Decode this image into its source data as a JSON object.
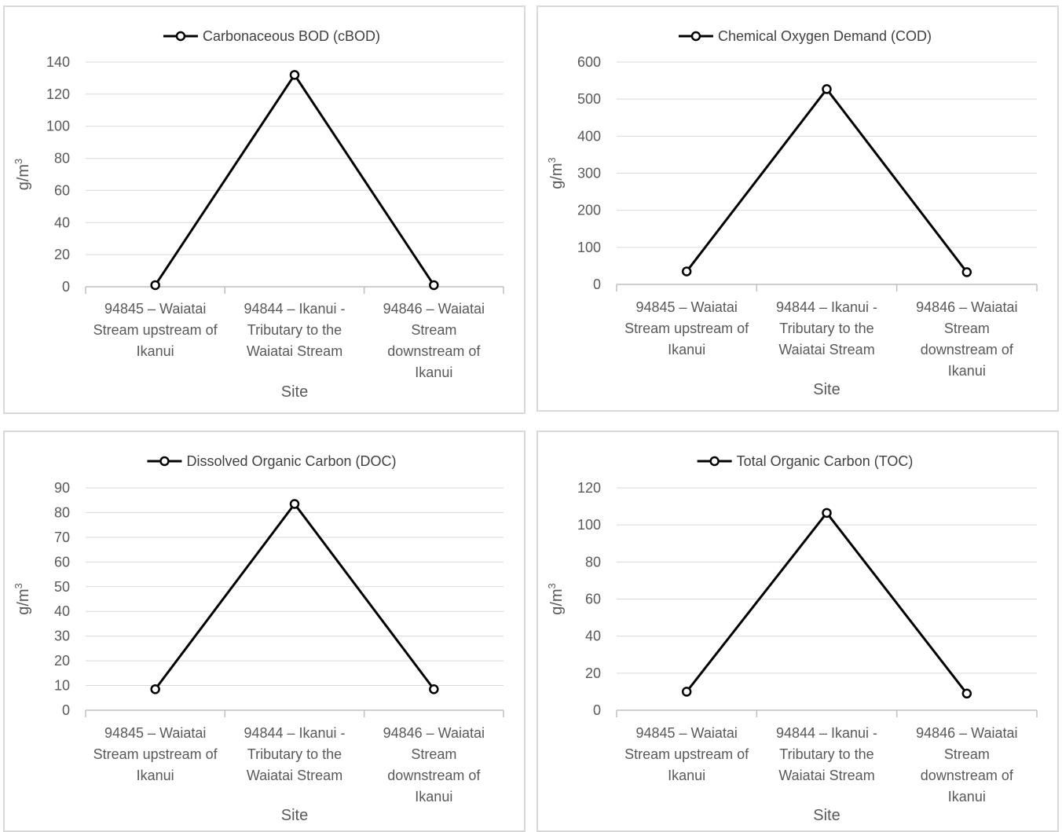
{
  "chart_data": [
    {
      "type": "line",
      "categories": [
        [
          "94845 – Waiatai",
          "Stream upstream of",
          "Ikanui"
        ],
        [
          "94844 – Ikanui -",
          "Tributary to the",
          "Waiatai Stream"
        ],
        [
          "94846 – Waiatai",
          "Stream",
          "downstream of",
          "Ikanui"
        ]
      ],
      "series": [
        {
          "name": "Carbonaceous BOD (cBOD)",
          "values": [
            1,
            132,
            1
          ]
        }
      ],
      "xlabel": "Site",
      "ylabel": "g/m",
      "ylabel_sup": "3",
      "ylim": [
        0,
        140
      ],
      "yticks": [
        0,
        20,
        40,
        60,
        80,
        100,
        120,
        140
      ],
      "grid": true,
      "legend": "top",
      "colors": {
        "line": "#000000",
        "grid": "#d9d9d9",
        "axis": "#bfbfbf"
      }
    },
    {
      "type": "line",
      "categories": [
        [
          "94845 – Waiatai",
          "Stream upstream of",
          "Ikanui"
        ],
        [
          "94844 – Ikanui -",
          "Tributary to the",
          "Waiatai Stream"
        ],
        [
          "94846 – Waiatai",
          "Stream",
          "downstream of",
          "Ikanui"
        ]
      ],
      "series": [
        {
          "name": "Chemical Oxygen Demand (COD)",
          "values": [
            35,
            527,
            33
          ]
        }
      ],
      "xlabel": "Site",
      "ylabel": "g/m",
      "ylabel_sup": "3",
      "ylim": [
        0,
        600
      ],
      "yticks": [
        0,
        100,
        200,
        300,
        400,
        500,
        600
      ],
      "grid": true,
      "legend": "top",
      "colors": {
        "line": "#000000",
        "grid": "#d9d9d9",
        "axis": "#bfbfbf"
      }
    },
    {
      "type": "line",
      "categories": [
        [
          "94845 – Waiatai",
          "Stream upstream of",
          "Ikanui"
        ],
        [
          "94844 – Ikanui -",
          "Tributary to the",
          "Waiatai Stream"
        ],
        [
          "94846 – Waiatai",
          "Stream",
          "downstream of",
          "Ikanui"
        ]
      ],
      "series": [
        {
          "name": "Dissolved Organic Carbon (DOC)",
          "values": [
            8.5,
            83.5,
            8.5
          ]
        }
      ],
      "xlabel": "Site",
      "ylabel": "g/m",
      "ylabel_sup": "3",
      "ylim": [
        0,
        90
      ],
      "yticks": [
        0,
        10,
        20,
        30,
        40,
        50,
        60,
        70,
        80,
        90
      ],
      "grid": true,
      "legend": "top",
      "colors": {
        "line": "#000000",
        "grid": "#d9d9d9",
        "axis": "#bfbfbf"
      }
    },
    {
      "type": "line",
      "categories": [
        [
          "94845 – Waiatai",
          "Stream upstream of",
          "Ikanui"
        ],
        [
          "94844 – Ikanui -",
          "Tributary to the",
          "Waiatai Stream"
        ],
        [
          "94846 – Waiatai",
          "Stream",
          "downstream of",
          "Ikanui"
        ]
      ],
      "series": [
        {
          "name": "Total Organic Carbon (TOC)",
          "values": [
            10,
            106.5,
            9
          ]
        }
      ],
      "xlabel": "Site",
      "ylabel": "g/m",
      "ylabel_sup": "3",
      "ylim": [
        0,
        120
      ],
      "yticks": [
        0,
        20,
        40,
        60,
        80,
        100,
        120
      ],
      "grid": true,
      "legend": "top",
      "colors": {
        "line": "#000000",
        "grid": "#d9d9d9",
        "axis": "#bfbfbf"
      }
    }
  ]
}
